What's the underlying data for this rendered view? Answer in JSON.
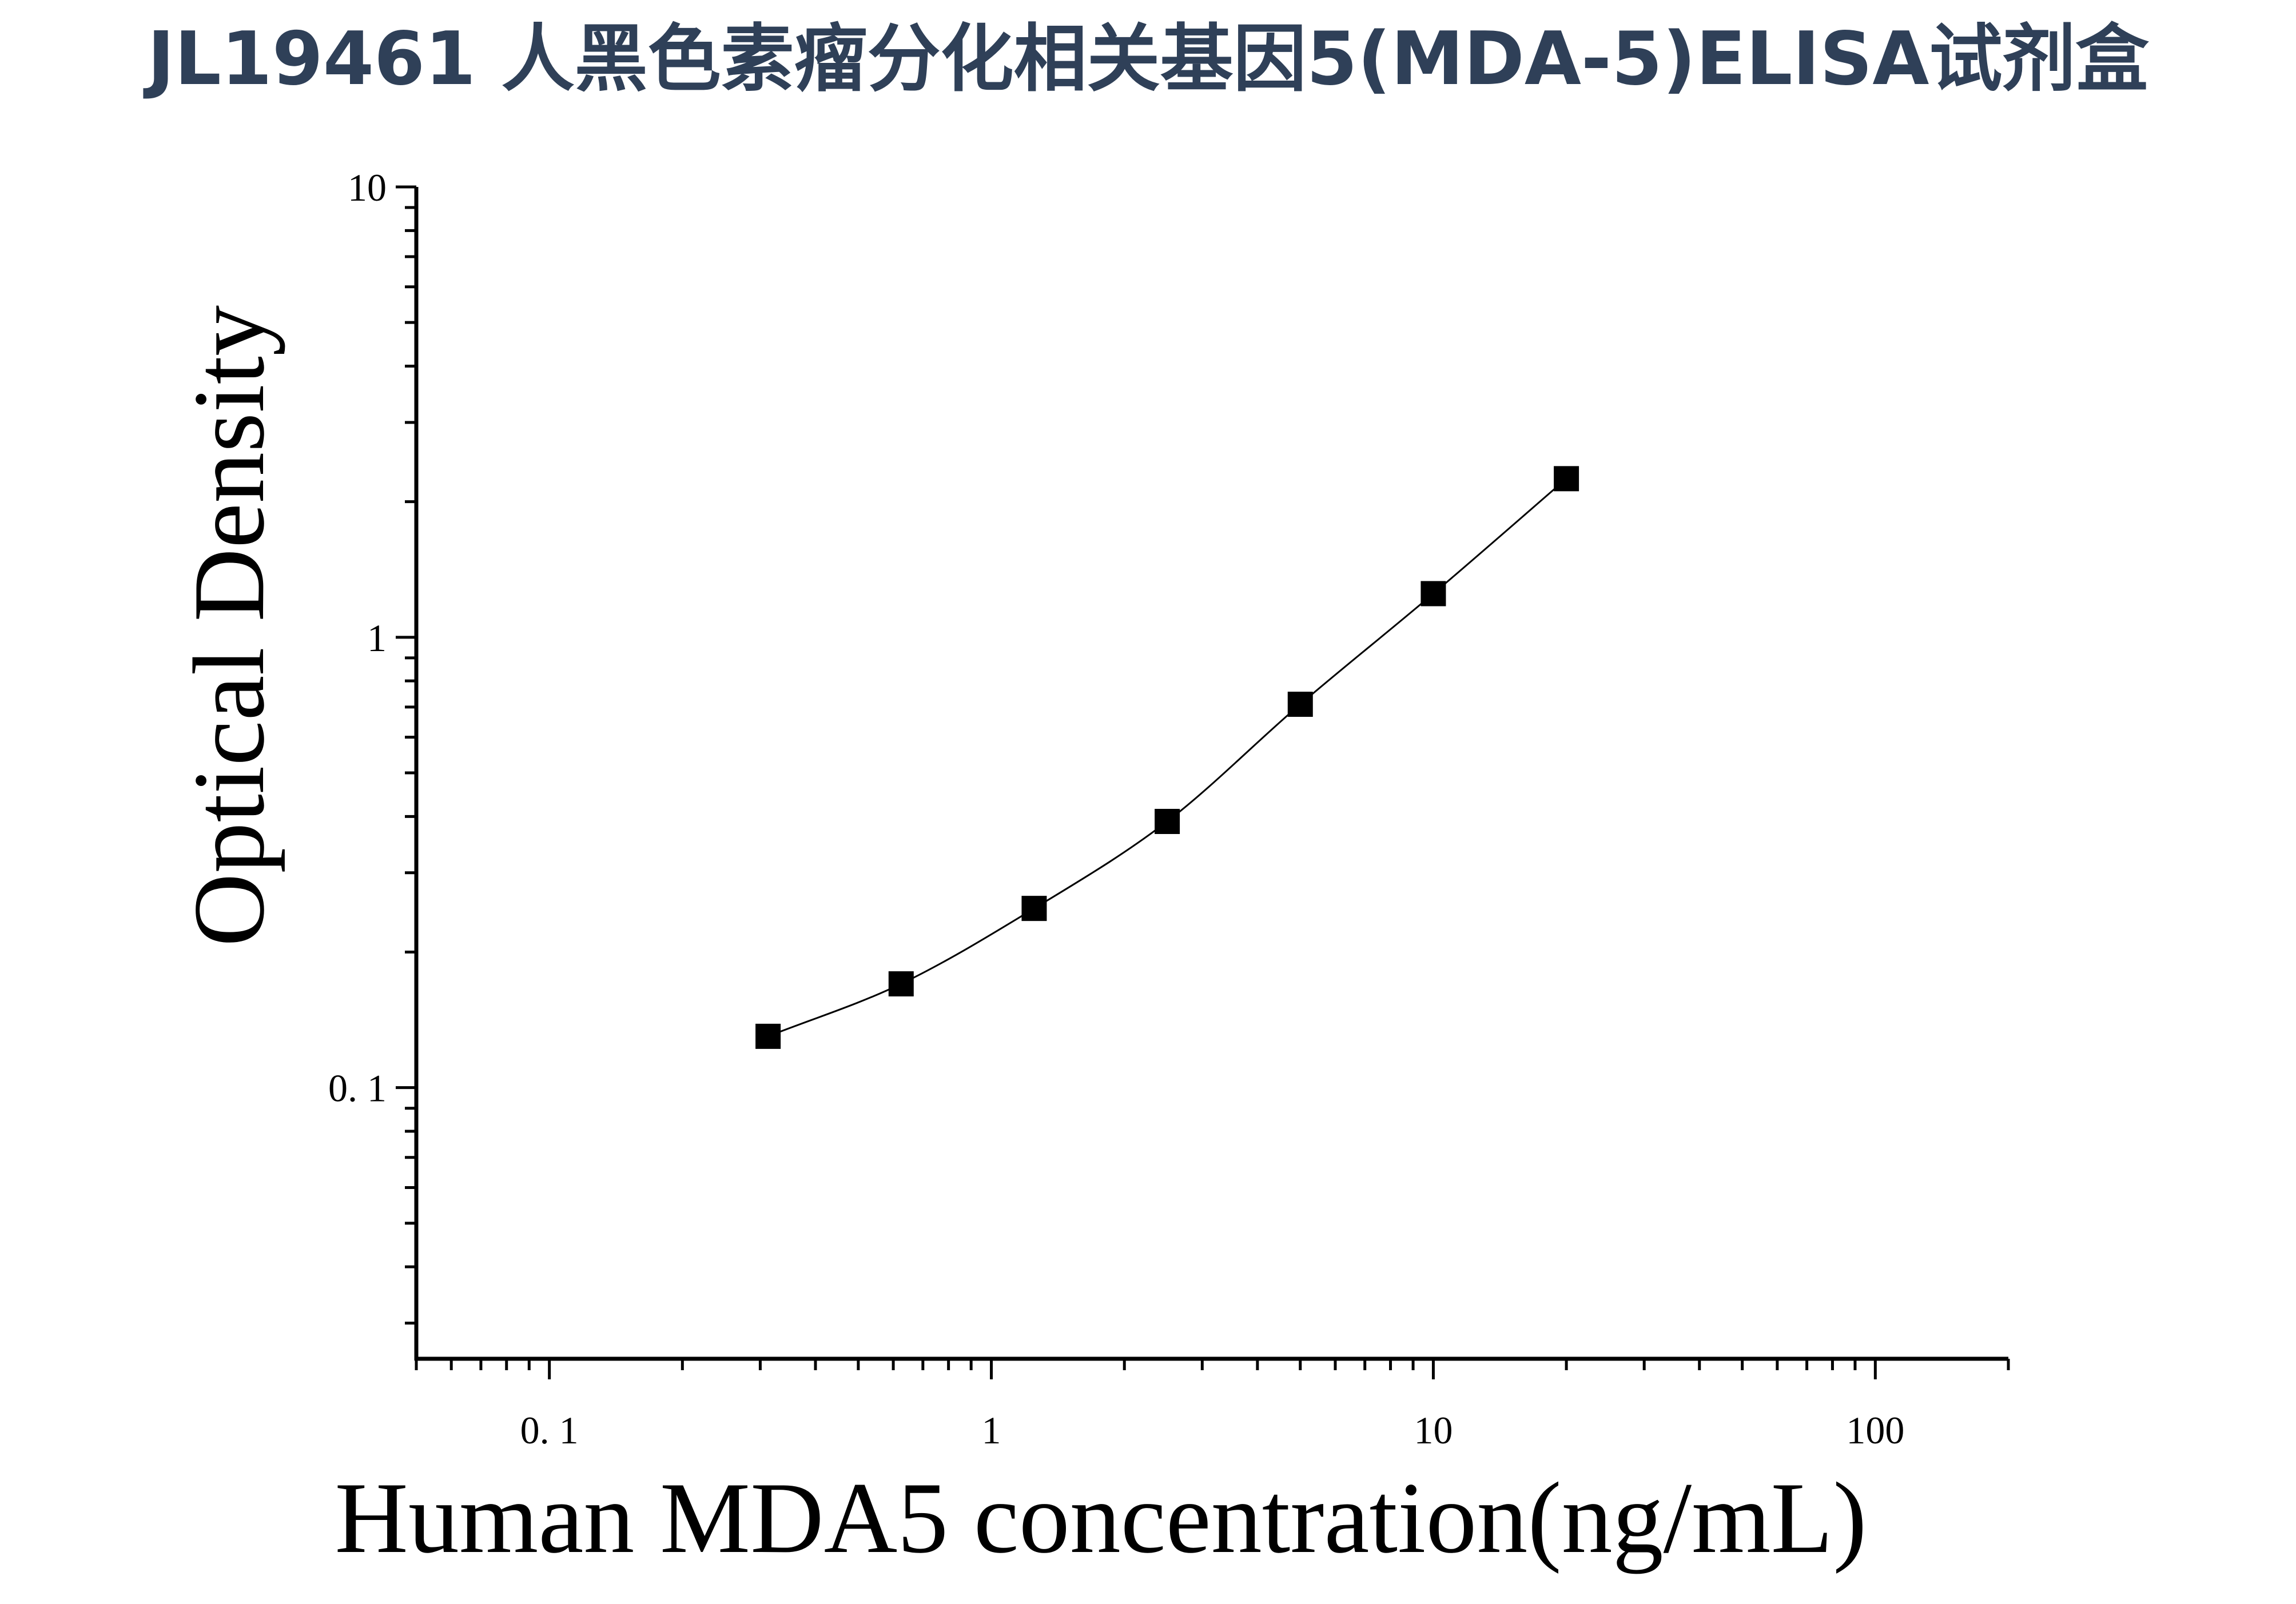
{
  "title": "JL19461 人黑色素瘤分化相关基因5(MDA-5)ELISA试剂盒",
  "chart_data": {
    "type": "scatter",
    "xlabel": "Human MDA5 concentration(ng/mL)",
    "ylabel": "Optical Density",
    "xscale": "log",
    "yscale": "log",
    "xlim": [
      0.05,
      200
    ],
    "ylim": [
      0.025,
      10
    ],
    "xticks": [
      0.1,
      1,
      10,
      100
    ],
    "xtick_labels": [
      "0. 1",
      "1",
      "10",
      "100"
    ],
    "yticks": [
      0.1,
      1,
      10
    ],
    "ytick_labels": [
      "0. 1",
      "1",
      "10"
    ],
    "grid": false,
    "legend": "none",
    "series": [
      {
        "marker": "square",
        "color": "#000000",
        "fit_line": true,
        "x": [
          0.3125,
          0.625,
          1.25,
          2.5,
          5,
          10,
          20
        ],
        "y": [
          0.13,
          0.17,
          0.25,
          0.39,
          0.71,
          1.25,
          2.25
        ]
      }
    ]
  }
}
